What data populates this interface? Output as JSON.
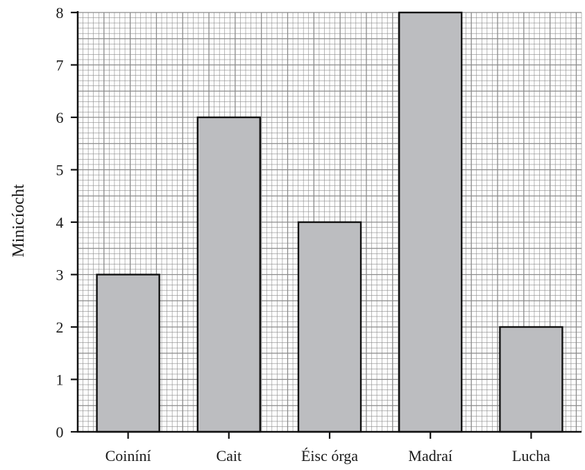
{
  "chart_data": {
    "type": "bar",
    "title": "",
    "xlabel": "",
    "ylabel": "Minicíocht",
    "categories": [
      "Coiníní",
      "Cait",
      "Éisc órga",
      "Madraí",
      "Lucha"
    ],
    "values": [
      3,
      6,
      4,
      8,
      2
    ],
    "ylim": [
      0,
      8
    ],
    "yticks": [
      "0",
      "1",
      "2",
      "3",
      "4",
      "5",
      "6",
      "7",
      "8"
    ],
    "grid": true,
    "bar_color": "#bcbdc0",
    "grid_color": "#8a8a8a"
  }
}
